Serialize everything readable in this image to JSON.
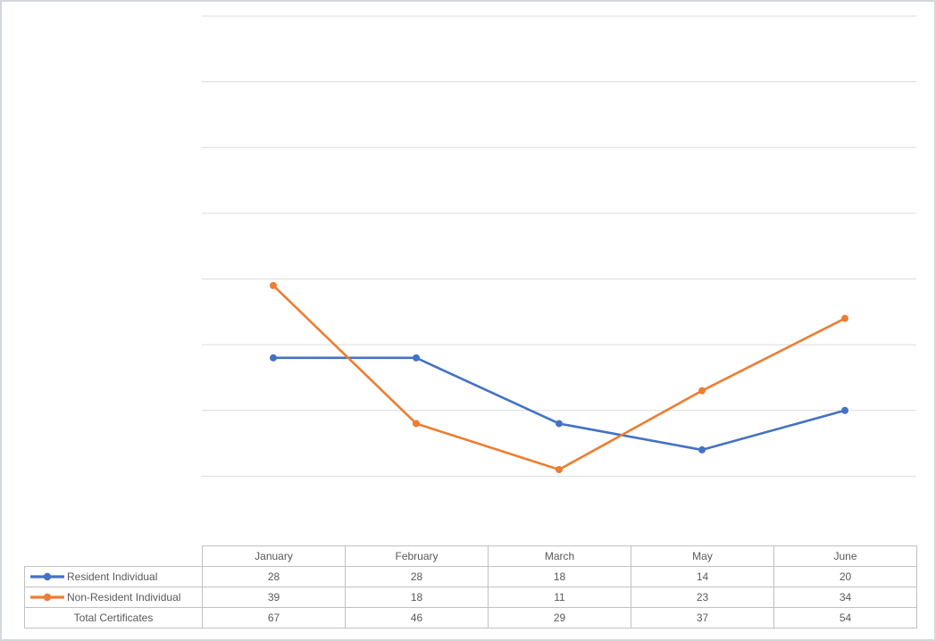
{
  "chart_data": {
    "type": "line",
    "title": "",
    "xlabel": "",
    "ylabel": "",
    "categories": [
      "January",
      "February",
      "March",
      "May",
      "June"
    ],
    "series": [
      {
        "name": "Resident Individual",
        "values": [
          28,
          28,
          18,
          14,
          20
        ],
        "color": "#4472C4",
        "marker": "circle"
      },
      {
        "name": "Non-Resident Individual",
        "values": [
          39,
          18,
          11,
          23,
          34
        ],
        "color": "#ED7D31",
        "marker": "circle"
      }
    ],
    "ylim": [
      0,
      80
    ],
    "gridline_values": [
      10,
      20,
      30,
      40,
      50,
      60,
      70,
      80
    ],
    "grid": true,
    "y_axis_labels_visible": false,
    "x_axis_labels_visible": false,
    "legend_position": "data-table-keys"
  },
  "data_table": {
    "headers": [
      "January",
      "February",
      "March",
      "May",
      "June"
    ],
    "rows": [
      {
        "label": "Resident Individual",
        "has_legend_key": true,
        "key_color": "#4472C4",
        "values": [
          28,
          28,
          18,
          14,
          20
        ]
      },
      {
        "label": "Non-Resident Individual",
        "has_legend_key": true,
        "key_color": "#ED7D31",
        "values": [
          39,
          18,
          11,
          23,
          34
        ]
      },
      {
        "label": "Total Certificates",
        "has_legend_key": false,
        "key_color": "",
        "values": [
          67,
          46,
          29,
          37,
          54
        ]
      }
    ]
  },
  "colors": {
    "series_resident": "#4472C4",
    "series_non_resident": "#ED7D31",
    "gridline": "#dcdcdc",
    "table_border": "#c2c1c1",
    "text": "#595959",
    "frame_border": "#d3d8de",
    "background": "#ffffff"
  }
}
